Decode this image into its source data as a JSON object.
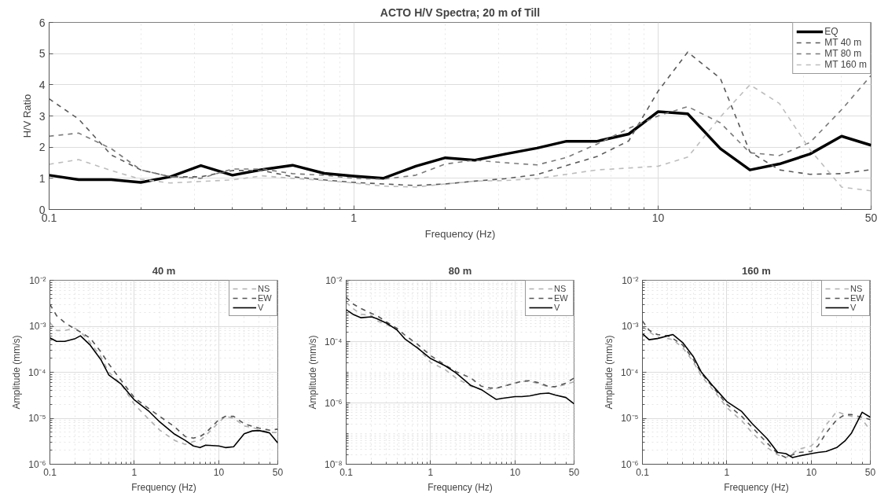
{
  "chart_data": [
    {
      "type": "line",
      "title": "ACTO H/V Spectra; 20 m of Till",
      "xlabel": "Frequency (Hz)",
      "ylabel": "H/V Ratio",
      "log": "x",
      "grid": true,
      "legend": "top right",
      "marker": "none",
      "x": [
        0.1,
        0.125,
        0.16,
        0.2,
        0.25,
        0.315,
        0.4,
        0.5,
        0.63,
        0.8,
        1,
        1.25,
        1.6,
        2,
        2.5,
        3.15,
        4,
        5,
        6.3,
        8,
        10,
        12.5,
        16,
        20,
        25,
        31.5,
        40,
        50
      ],
      "xlim": [
        0.1,
        50
      ],
      "xticks": [
        0.1,
        1,
        10,
        50
      ],
      "ylim": [
        0,
        6
      ],
      "yticks": [
        0,
        1,
        2,
        3,
        4,
        5,
        6
      ],
      "series": [
        {
          "name": "EQ",
          "color": "#000000",
          "line_style": "solid",
          "values": [
            1.1,
            0.96,
            0.96,
            0.87,
            1.05,
            1.41,
            1.1,
            1.28,
            1.42,
            1.16,
            1.07,
            1.0,
            1.39,
            1.66,
            1.58,
            1.78,
            1.97,
            2.19,
            2.19,
            2.42,
            3.14,
            3.07,
            1.95,
            1.27,
            1.46,
            1.78,
            2.35,
            2.06
          ]
        },
        {
          "name": "MT 40 m",
          "color": "#5a5a5a",
          "line_style": "dashed",
          "values": [
            3.55,
            2.9,
            1.75,
            1.27,
            1.05,
            1.05,
            1.25,
            1.25,
            1.05,
            0.95,
            0.87,
            0.82,
            0.77,
            0.82,
            0.91,
            0.99,
            1.12,
            1.41,
            1.7,
            2.2,
            3.8,
            5.05,
            4.2,
            1.85,
            1.27,
            1.13,
            1.15,
            1.28
          ]
        },
        {
          "name": "MT 80 m",
          "color": "#7a7a7a",
          "line_style": "dashed",
          "values": [
            2.35,
            2.45,
            1.95,
            1.27,
            1.05,
            1.0,
            1.3,
            1.3,
            1.15,
            1.1,
            1.0,
            0.97,
            1.1,
            1.46,
            1.58,
            1.5,
            1.43,
            1.67,
            2.1,
            2.6,
            3.0,
            3.3,
            2.78,
            1.82,
            1.73,
            2.15,
            3.2,
            4.3
          ]
        },
        {
          "name": "MT 160 m",
          "color": "#bdbdbd",
          "line_style": "dashed",
          "values": [
            1.45,
            1.6,
            1.25,
            0.97,
            0.85,
            0.9,
            0.95,
            1.08,
            1.0,
            0.93,
            0.85,
            0.75,
            0.72,
            0.82,
            0.91,
            0.93,
            0.99,
            1.13,
            1.27,
            1.33,
            1.39,
            1.68,
            2.97,
            4.0,
            3.4,
            1.92,
            0.72,
            0.6
          ]
        }
      ]
    },
    {
      "type": "line",
      "title": "40 m",
      "xlabel": "Frequency (Hz)",
      "ylabel": "Amplitude (mm/s)",
      "log": "xy",
      "grid": true,
      "legend": "top right",
      "marker": "none",
      "x": [
        0.1,
        0.12,
        0.15,
        0.2,
        0.23,
        0.3,
        0.4,
        0.5,
        0.7,
        1,
        1.5,
        2,
        3,
        4,
        5,
        6,
        7,
        10,
        12,
        15,
        20,
        25,
        30,
        40,
        50
      ],
      "xlim": [
        0.1,
        50
      ],
      "xticks": [
        0.1,
        1,
        10,
        50
      ],
      "ylim": [
        1e-06,
        0.01
      ],
      "yticks": [
        {
          "value": 1e-06,
          "label": "10⁻⁶"
        },
        {
          "value": 1e-05,
          "label": "10⁻⁵"
        },
        {
          "value": 0.0001,
          "label": "10⁻⁴"
        },
        {
          "value": 0.001,
          "label": "10⁻³"
        },
        {
          "value": 0.01,
          "label": "10⁻²"
        }
      ],
      "series": [
        {
          "name": "NS",
          "color": "#b0b0b0",
          "line_style": "dashed",
          "values": [
            0.0012,
            0.00081,
            0.00081,
            0.0009,
            0.00076,
            0.00044,
            0.00022,
            0.0001,
            5.5e-05,
            2e-05,
            9.3e-06,
            5.5e-06,
            3.3e-06,
            2.7e-06,
            3.1e-06,
            3.3e-06,
            4.2e-06,
            8.1e-06,
            1.1e-05,
            1e-05,
            6.8e-06,
            6.3e-06,
            5.7e-06,
            4.9e-06,
            4.9e-06
          ]
        },
        {
          "name": "EW",
          "color": "#555555",
          "line_style": "dashed",
          "values": [
            0.003,
            0.0017,
            0.0012,
            0.00086,
            0.00075,
            0.00055,
            0.00028,
            0.00015,
            6.6e-05,
            2.8e-05,
            1.6e-05,
            1.1e-05,
            6.5e-06,
            4e-06,
            3.7e-06,
            4e-06,
            4.8e-06,
            9.3e-06,
            1.1e-05,
            1.1e-05,
            7.6e-06,
            6.7e-06,
            6.1e-06,
            5.5e-06,
            5.8e-06
          ]
        },
        {
          "name": "V",
          "color": "#000000",
          "line_style": "solid",
          "values": [
            0.00056,
            0.00047,
            0.00047,
            0.00054,
            0.00062,
            0.00039,
            0.00019,
            8.7e-05,
            5.5e-05,
            2.5e-05,
            1.4e-05,
            8.3e-06,
            4.5e-06,
            3.3e-06,
            2.5e-06,
            2.3e-06,
            2.6e-06,
            2.5e-06,
            2.3e-06,
            2.4e-06,
            4.6e-06,
            5.3e-06,
            5.4e-06,
            4.8e-06,
            2.9e-06
          ]
        }
      ]
    },
    {
      "type": "line",
      "title": "80 m",
      "xlabel": "Frequency (Hz)",
      "ylabel": "Amplitude (mm/s)",
      "log": "xy",
      "grid": true,
      "legend": "top right",
      "marker": "none",
      "x": [
        0.1,
        0.12,
        0.15,
        0.2,
        0.23,
        0.3,
        0.4,
        0.5,
        0.7,
        1,
        1.5,
        2,
        3,
        4,
        5,
        6,
        7,
        10,
        12,
        15,
        20,
        25,
        30,
        40,
        50
      ],
      "xlim": [
        0.1,
        50
      ],
      "xticks": [
        0.1,
        1,
        10,
        50
      ],
      "ylim": [
        1e-08,
        0.01
      ],
      "yticks": [
        {
          "value": 1e-08,
          "label": "10⁻⁸"
        },
        {
          "value": 1e-06,
          "label": "10⁻⁶"
        },
        {
          "value": 0.0001,
          "label": "10⁻⁴"
        },
        {
          "value": 0.01,
          "label": "10⁻²"
        }
      ],
      "series": [
        {
          "name": "NS",
          "color": "#b0b0b0",
          "line_style": "dashed",
          "values": [
            0.0019,
            0.0012,
            0.00078,
            0.00071,
            0.00048,
            0.00036,
            0.00024,
            0.00012,
            6.5e-05,
            2.1e-05,
            1.2e-05,
            6.5e-06,
            3.5e-06,
            2.7e-06,
            2.8e-06,
            3e-06,
            3.4e-06,
            4.5e-06,
            5e-06,
            5.1e-06,
            4e-06,
            3.3e-06,
            3.3e-06,
            4e-06,
            4.9e-06
          ]
        },
        {
          "name": "EW",
          "color": "#555555",
          "line_style": "dashed",
          "values": [
            0.0028,
            0.0017,
            0.0012,
            0.00083,
            0.00071,
            0.00044,
            0.00027,
            0.00016,
            8.2e-05,
            3.5e-05,
            1.7e-05,
            1.05e-05,
            6.5e-06,
            3.5e-06,
            3.1e-06,
            3e-06,
            3.4e-06,
            4.4e-06,
            5.1e-06,
            5.3e-06,
            4.4e-06,
            3.4e-06,
            3.4e-06,
            4.4e-06,
            6.5e-06
          ]
        },
        {
          "name": "V",
          "color": "#000000",
          "line_style": "solid",
          "values": [
            0.0011,
            0.00078,
            0.0006,
            0.00064,
            0.00056,
            0.0004,
            0.00024,
            0.00012,
            6.2e-05,
            2.8e-05,
            1.6e-05,
            9.5e-06,
            3.7e-06,
            2.7e-06,
            1.8e-06,
            1.3e-06,
            1.4e-06,
            1.6e-06,
            1.6e-06,
            1.7e-06,
            2e-06,
            2.1e-06,
            1.8e-06,
            1.5e-06,
            9.3e-07
          ]
        }
      ]
    },
    {
      "type": "line",
      "title": "160 m",
      "xlabel": "Frequency (Hz)",
      "ylabel": "Amplitude (mm/s)",
      "log": "xy",
      "grid": true,
      "legend": "top right",
      "marker": "none",
      "x": [
        0.1,
        0.12,
        0.15,
        0.2,
        0.23,
        0.3,
        0.4,
        0.5,
        0.7,
        1,
        1.5,
        2,
        3,
        4,
        5,
        6,
        7,
        10,
        12,
        15,
        20,
        25,
        30,
        40,
        50
      ],
      "xlim": [
        0.1,
        50
      ],
      "xticks": [
        0.1,
        1,
        10,
        50
      ],
      "ylim": [
        1e-06,
        0.01
      ],
      "yticks": [
        {
          "value": 1e-06,
          "label": "10⁻⁶"
        },
        {
          "value": 1e-05,
          "label": "10⁻⁵"
        },
        {
          "value": 0.0001,
          "label": "10⁻⁴"
        },
        {
          "value": 0.001,
          "label": "10⁻³"
        },
        {
          "value": 0.01,
          "label": "10⁻²"
        }
      ],
      "series": [
        {
          "name": "NS",
          "color": "#b0b0b0",
          "line_style": "dashed",
          "values": [
            0.001,
            0.00076,
            0.00058,
            0.00054,
            0.00051,
            0.00034,
            0.00017,
            8.2e-05,
            4e-05,
            1.7e-05,
            8.8e-06,
            4.8e-06,
            2.3e-06,
            1.6e-06,
            1.4e-06,
            1.7e-06,
            2.1e-06,
            2.5e-06,
            3.5e-06,
            7.2e-06,
            1.4e-05,
            1.2e-05,
            1.1e-05,
            9.3e-06,
            5.5e-06
          ]
        },
        {
          "name": "EW",
          "color": "#555555",
          "line_style": "dashed",
          "values": [
            0.0013,
            0.00082,
            0.00066,
            0.00062,
            0.00054,
            0.00039,
            0.00019,
            9.4e-05,
            4.5e-05,
            2e-05,
            1.1e-05,
            6.3e-06,
            2.9e-06,
            1.7e-06,
            1.4e-06,
            1.6e-06,
            1.8e-06,
            1.9e-06,
            2.5e-06,
            4.8e-06,
            9.3e-06,
            1.2e-05,
            1.2e-05,
            1.05e-05,
            9.3e-06
          ]
        },
        {
          "name": "V",
          "color": "#000000",
          "line_style": "solid",
          "values": [
            0.00069,
            0.00051,
            0.00054,
            0.00062,
            0.00066,
            0.00044,
            0.00022,
            0.0001,
            4.8e-05,
            2.3e-05,
            1.4e-05,
            7.6e-06,
            3.6e-06,
            1.8e-06,
            1.7e-06,
            1.4e-06,
            1.5e-06,
            1.7e-06,
            1.8e-06,
            1.9e-06,
            2.3e-06,
            3.2e-06,
            4.8e-06,
            1.35e-05,
            1.05e-05
          ]
        }
      ]
    }
  ]
}
